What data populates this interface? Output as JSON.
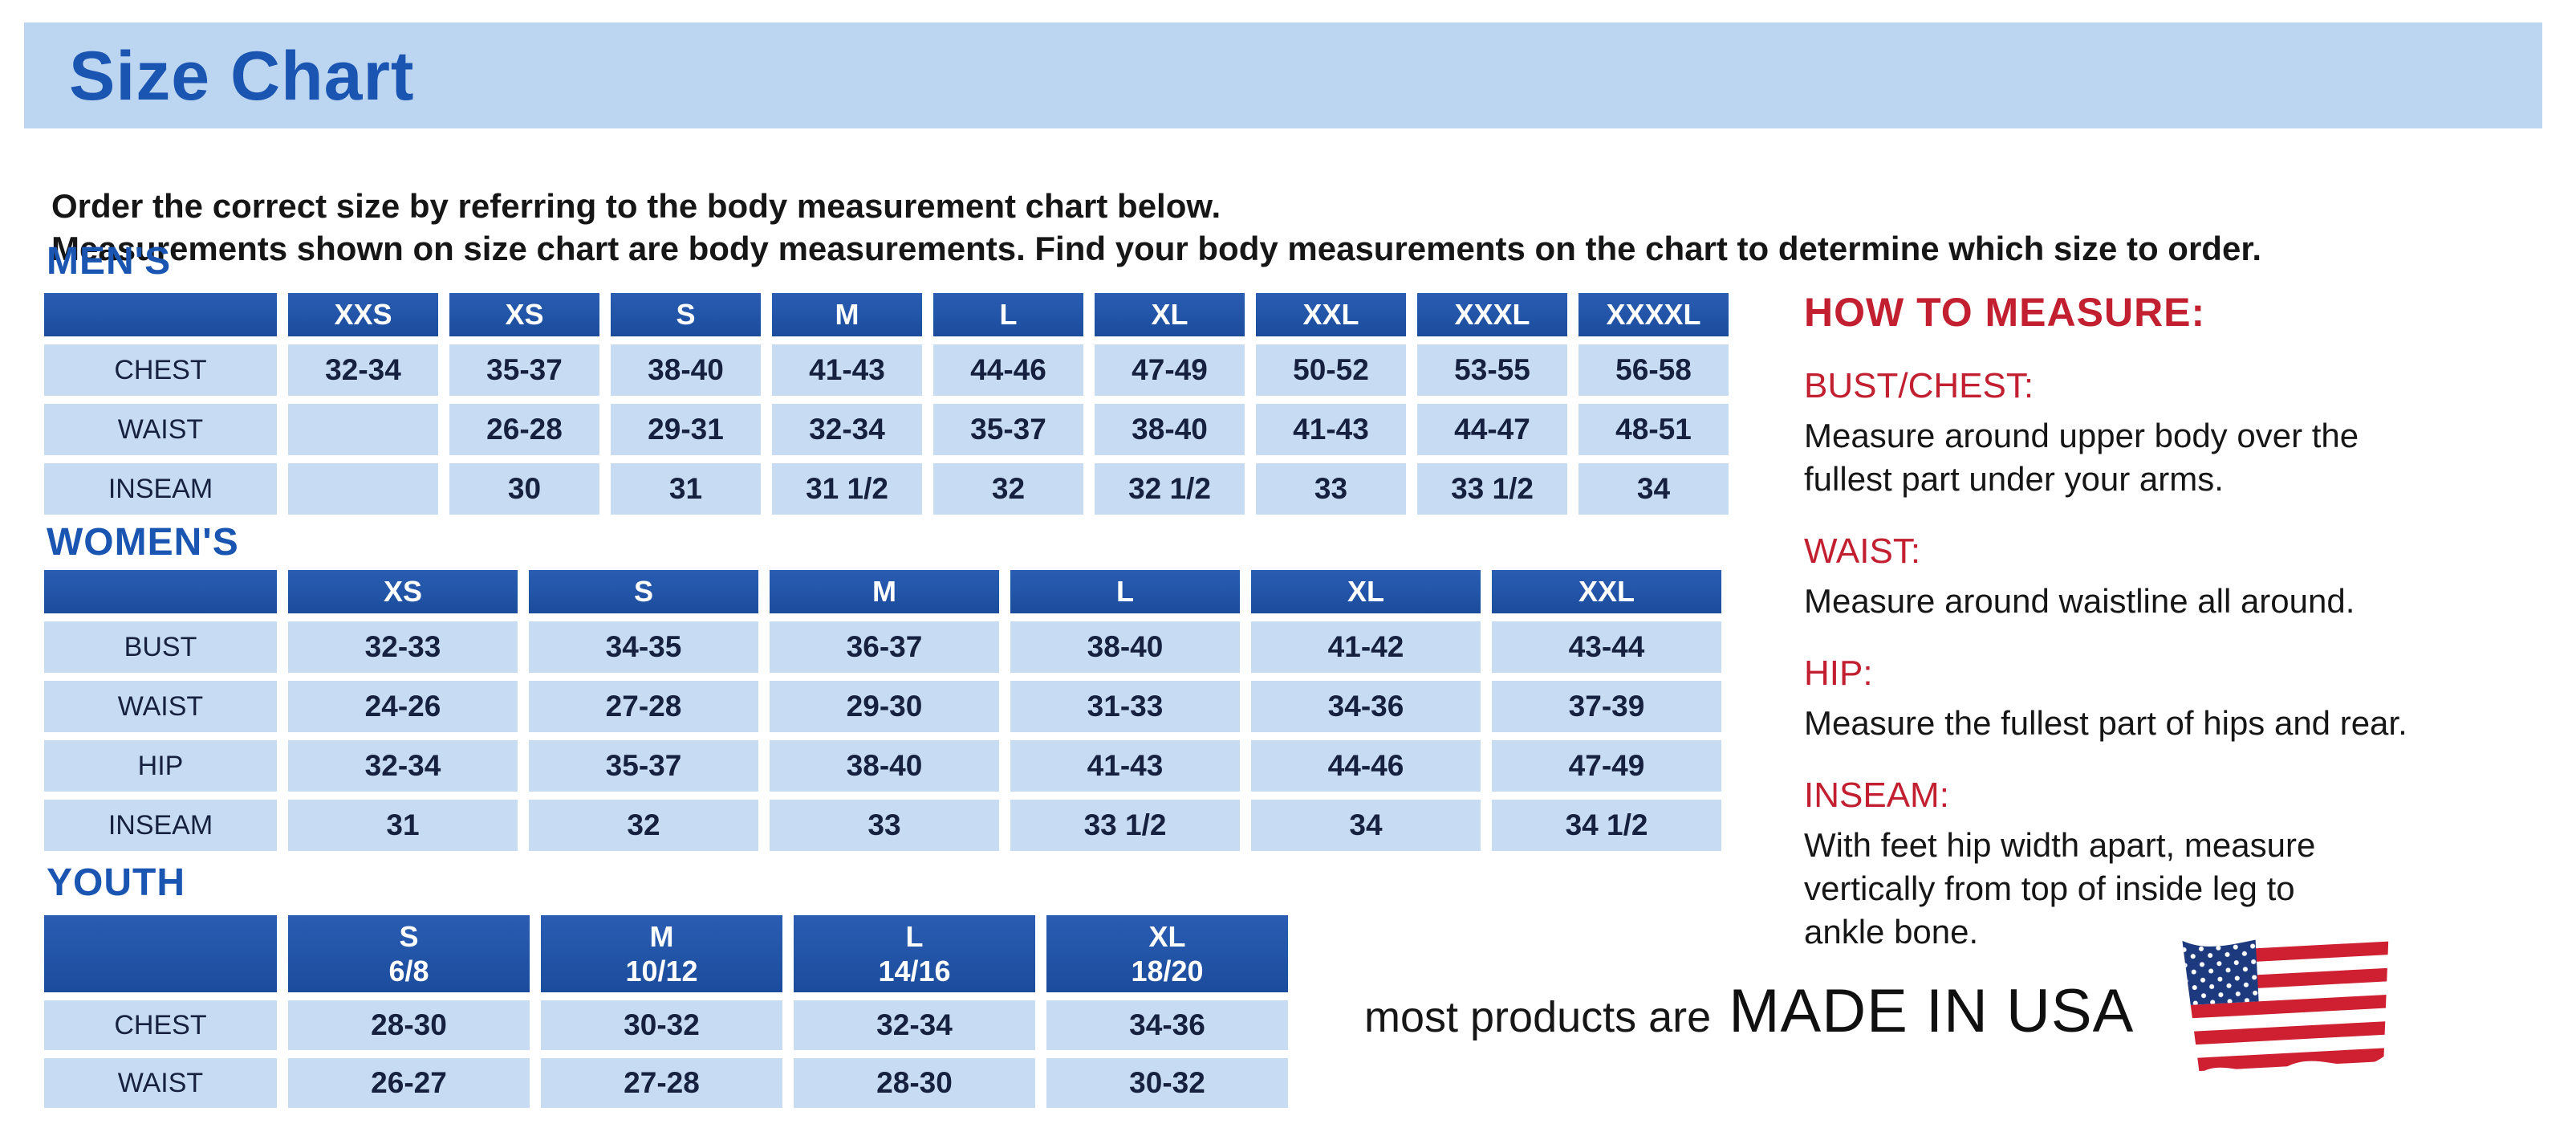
{
  "title": "Size Chart",
  "intro": {
    "line1": "Order the correct size by referring to the body measurement chart below.",
    "line2": "Measurements shown on size chart are body measurements.  Find your body measurements on the chart to determine which size to order."
  },
  "tables": {
    "mens": {
      "heading": "MEN'S",
      "columns": [
        "",
        "XXS",
        "XS",
        "S",
        "M",
        "L",
        "XL",
        "XXL",
        "XXXL",
        "XXXXL"
      ],
      "rows": [
        {
          "label": "CHEST",
          "values": [
            "32-34",
            "35-37",
            "38-40",
            "41-43",
            "44-46",
            "47-49",
            "50-52",
            "53-55",
            "56-58"
          ]
        },
        {
          "label": "WAIST",
          "values": [
            "",
            "26-28",
            "29-31",
            "32-34",
            "35-37",
            "38-40",
            "41-43",
            "44-47",
            "48-51"
          ]
        },
        {
          "label": "INSEAM",
          "values": [
            "",
            "30",
            "31",
            "31 1/2",
            "32",
            "32 1/2",
            "33",
            "33 1/2",
            "34"
          ]
        }
      ]
    },
    "womens": {
      "heading": "WOMEN'S",
      "columns": [
        "",
        "XS",
        "S",
        "M",
        "L",
        "XL",
        "XXL"
      ],
      "rows": [
        {
          "label": "BUST",
          "values": [
            "32-33",
            "34-35",
            "36-37",
            "38-40",
            "41-42",
            "43-44"
          ]
        },
        {
          "label": "WAIST",
          "values": [
            "24-26",
            "27-28",
            "29-30",
            "31-33",
            "34-36",
            "37-39"
          ]
        },
        {
          "label": "HIP",
          "values": [
            "32-34",
            "35-37",
            "38-40",
            "41-43",
            "44-46",
            "47-49"
          ]
        },
        {
          "label": "INSEAM",
          "values": [
            "31",
            "32",
            "33",
            "33 1/2",
            "34",
            "34 1/2"
          ]
        }
      ]
    },
    "youth": {
      "heading": "YOUTH",
      "columns": [
        "",
        "S\n6/8",
        "M\n10/12",
        "L\n14/16",
        "XL\n18/20"
      ],
      "rows": [
        {
          "label": "CHEST",
          "values": [
            "28-30",
            "30-32",
            "32-34",
            "34-36"
          ]
        },
        {
          "label": "WAIST",
          "values": [
            "26-27",
            "27-28",
            "28-30",
            "30-32"
          ]
        }
      ]
    }
  },
  "how_to_measure": {
    "heading": "HOW TO MEASURE:",
    "sections": [
      {
        "label": "BUST/CHEST:",
        "text": "Measure around upper body over the\nfullest part under your arms."
      },
      {
        "label": "WAIST:",
        "text": "Measure around waistline all around."
      },
      {
        "label": "HIP:",
        "text": "Measure the fullest part of hips and rear."
      },
      {
        "label": "INSEAM:",
        "text": "With feet hip width apart, measure\nvertically from top of inside leg to\nankle bone."
      }
    ]
  },
  "footer": {
    "prefix": "most products are",
    "emphasis": "MADE IN USA",
    "flag_icon": "usa-flag-icon"
  },
  "colors": {
    "banner_bg": "#bcd5f1",
    "heading_blue": "#1a55b2",
    "table_header_bg": "#1e52a6",
    "cell_bg": "#c7dcf2",
    "cell_text": "#16213f",
    "accent_red": "#c22030",
    "flag_red": "#ce2030",
    "flag_blue": "#1e3a7f"
  }
}
